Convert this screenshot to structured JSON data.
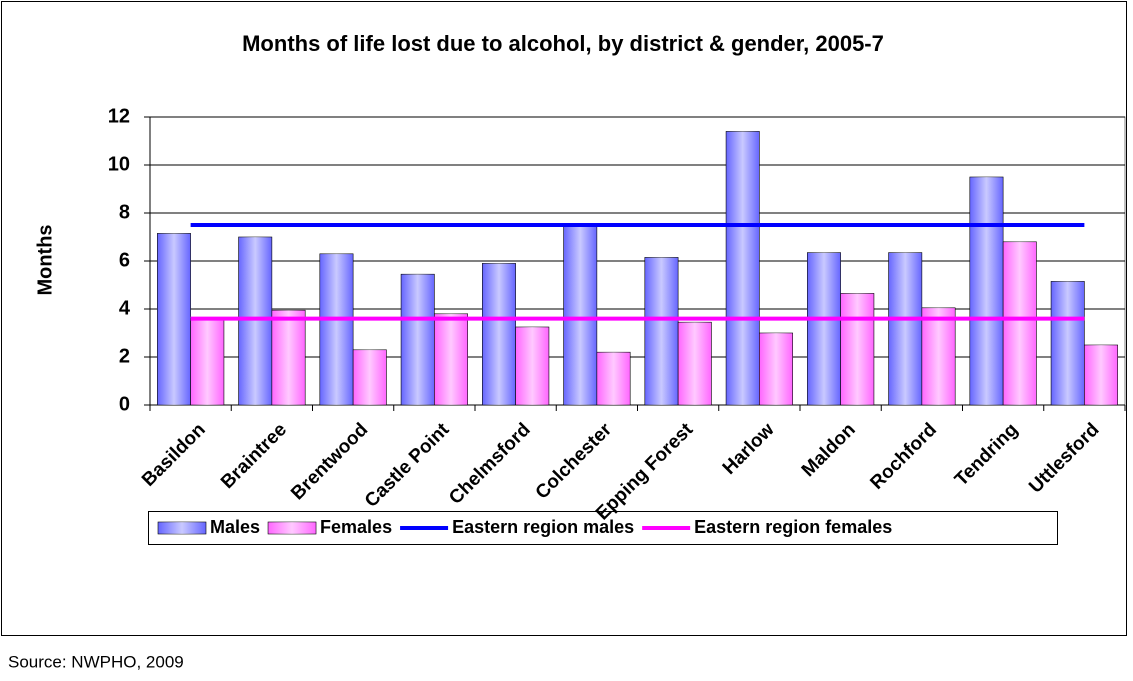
{
  "chart_data": {
    "type": "bar",
    "title": "Months of life lost due to alcohol, by district & gender, 2005-7",
    "y_label": "Months",
    "source": "Source: NWPHO, 2009",
    "categories": [
      "Basildon",
      "Braintree",
      "Brentwood",
      "Castle Point",
      "Chelmsford",
      "Colchester",
      "Epping Forest",
      "Harlow",
      "Maldon",
      "Rochford",
      "Tendring",
      "Uttlesford"
    ],
    "series": [
      {
        "name": "Males",
        "type": "bar",
        "color": "#6666ff",
        "values": [
          7.15,
          7.0,
          6.3,
          5.45,
          5.9,
          7.5,
          6.15,
          11.4,
          6.35,
          6.35,
          9.5,
          5.15
        ]
      },
      {
        "name": "Females",
        "type": "bar",
        "color": "#ff66ff",
        "values": [
          3.6,
          3.95,
          2.3,
          3.8,
          3.25,
          2.2,
          3.45,
          3.0,
          4.65,
          4.05,
          6.8,
          2.5
        ]
      },
      {
        "name": "Eastern region males",
        "type": "line",
        "color": "#0000ff",
        "values": [
          7.5,
          7.5,
          7.5,
          7.5,
          7.5,
          7.5,
          7.5,
          7.5,
          7.5,
          7.5,
          7.5,
          7.5
        ]
      },
      {
        "name": "Eastern region females",
        "type": "line",
        "color": "#ff00ff",
        "values": [
          3.6,
          3.6,
          3.6,
          3.6,
          3.6,
          3.6,
          3.6,
          3.6,
          3.6,
          3.6,
          3.6,
          3.6
        ]
      }
    ],
    "ylim": [
      0,
      12
    ],
    "yticks": [
      0,
      2,
      4,
      6,
      8,
      10,
      12
    ],
    "grid": true,
    "legend": "bottom"
  }
}
